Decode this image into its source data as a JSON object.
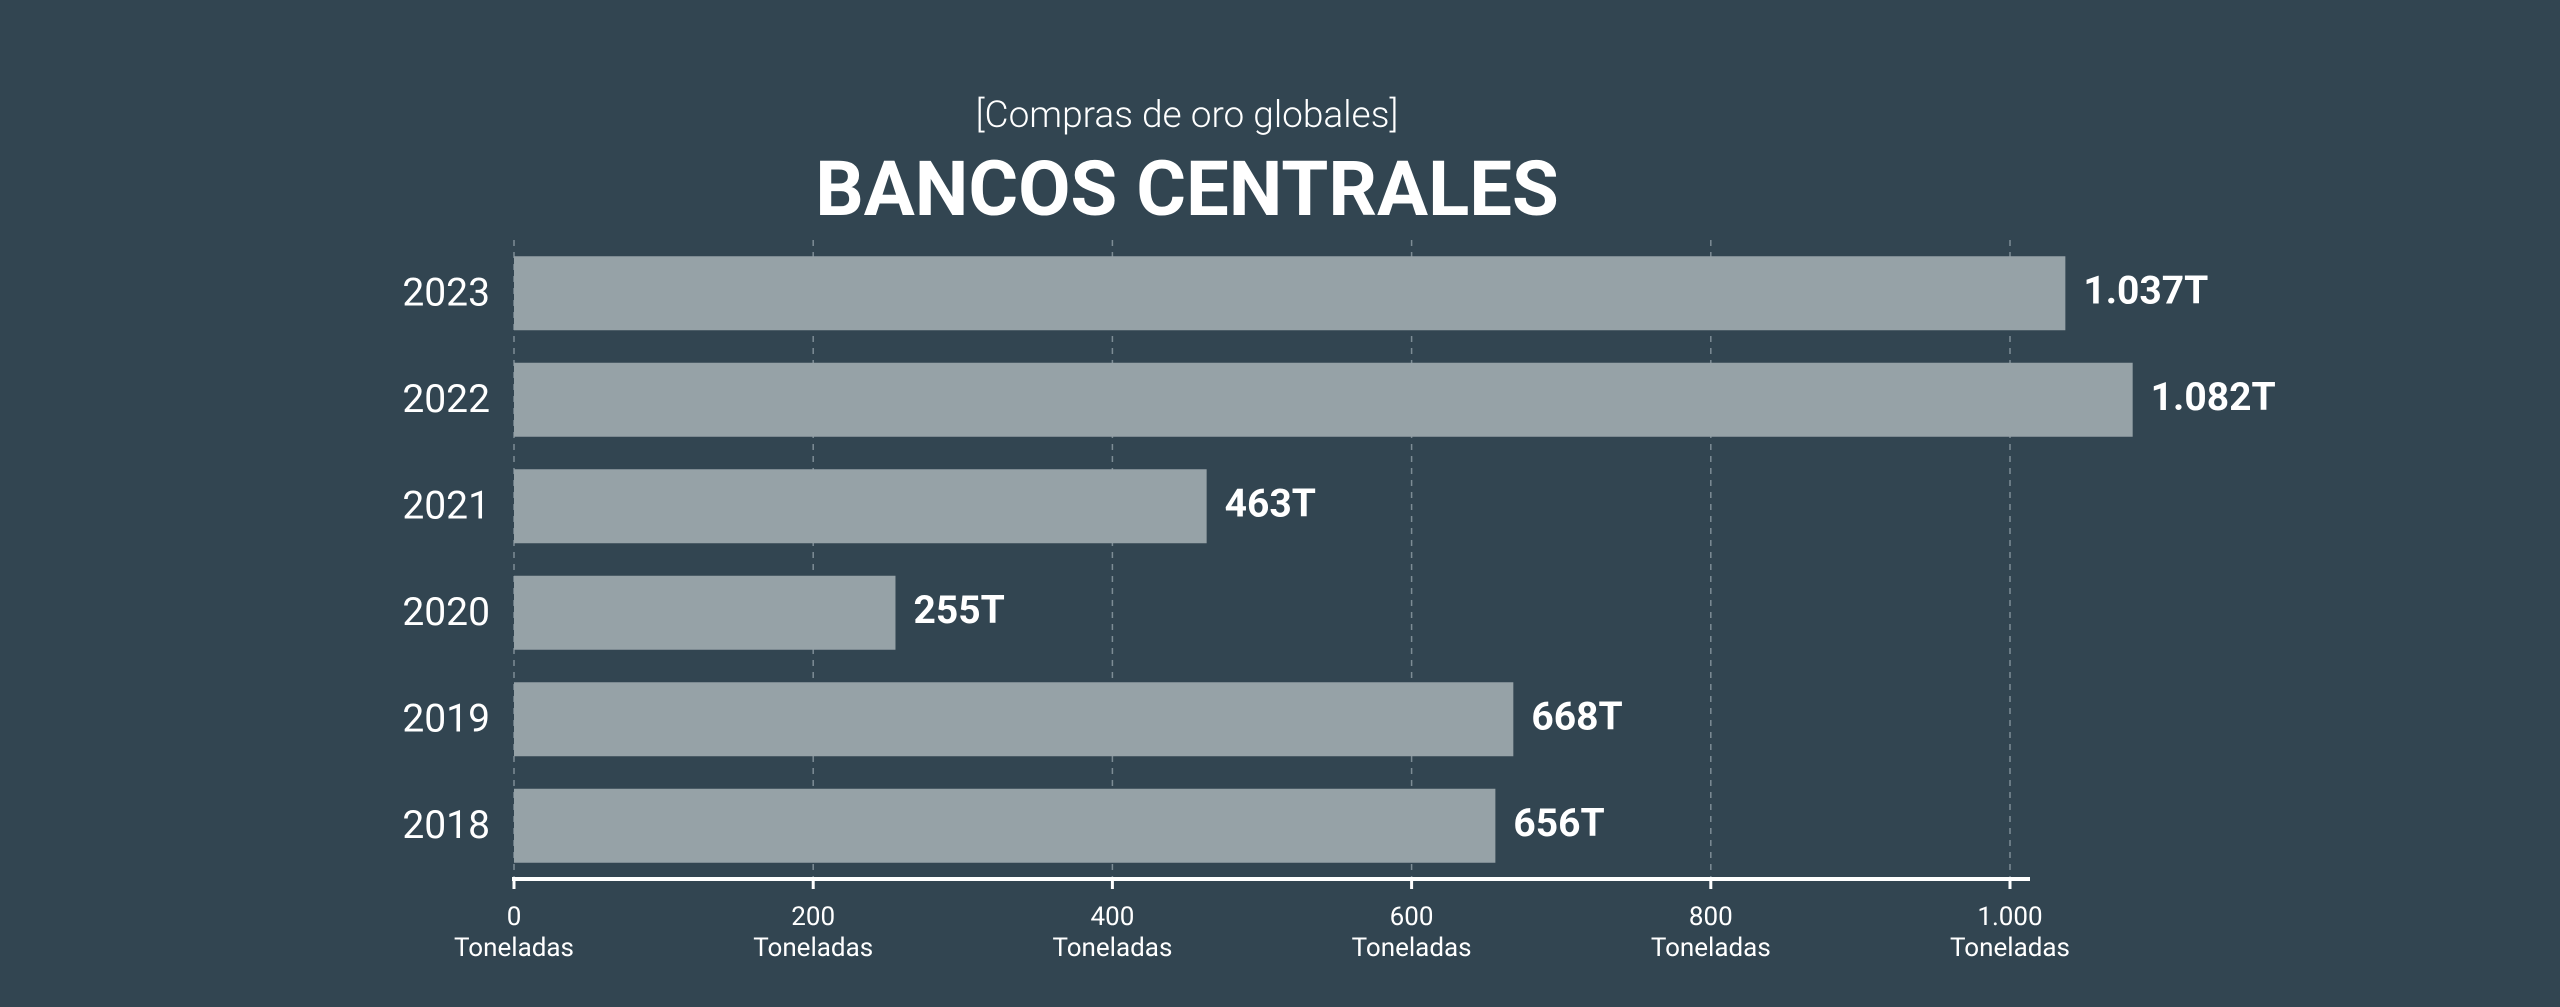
{
  "chart_data": {
    "type": "bar",
    "orientation": "horizontal",
    "subtitle": "[Compras de oro globales]",
    "title": "BANCOS CENTRALES",
    "categories": [
      "2023",
      "2022",
      "2021",
      "2020",
      "2019",
      "2018"
    ],
    "values": [
      1037,
      1082,
      463,
      255,
      668,
      656
    ],
    "value_labels": [
      "1.037T",
      "1.082T",
      "463T",
      "255T",
      "668T",
      "656T"
    ],
    "color": "#96a2a7",
    "xlim": [
      0,
      1000
    ],
    "xticks": [
      0,
      200,
      400,
      600,
      800,
      {
        "value": 1000,
        "label": "1.000"
      }
    ],
    "x_unit": "Toneladas",
    "grid": true
  }
}
